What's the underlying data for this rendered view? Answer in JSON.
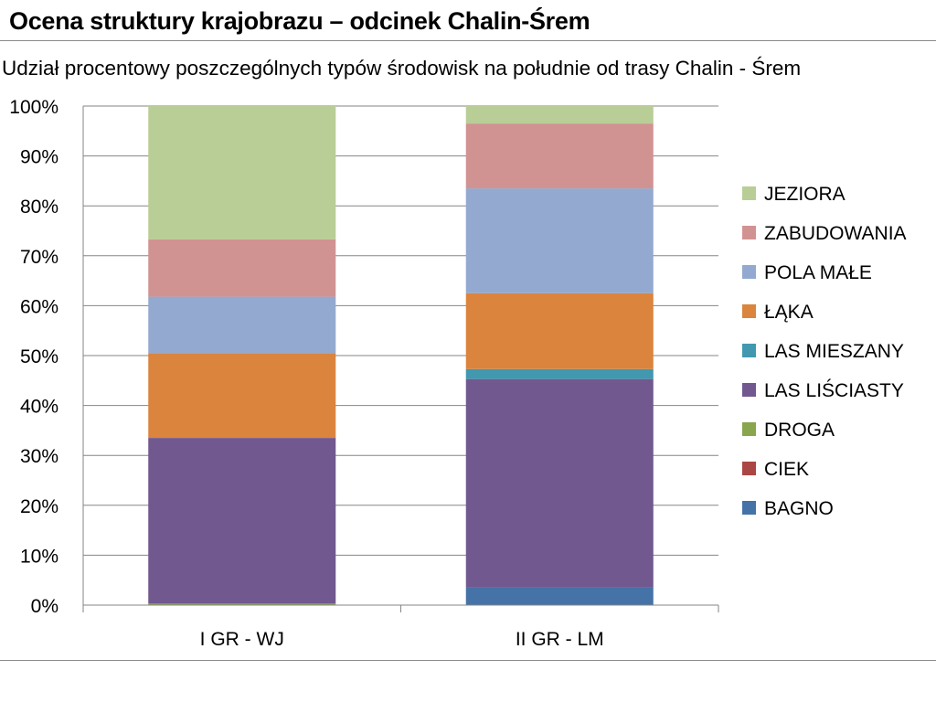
{
  "slide": {
    "title": "Ocena struktury krajobrazu – odcinek Chalin-Śrem"
  },
  "chart_data": {
    "type": "bar",
    "stacked": true,
    "percent_stacked": true,
    "title": "Udział procentowy  poszczególnych typów środowisk na  południe od trasy  Chalin - Śrem",
    "xlabel": "",
    "ylabel": "",
    "ylim": [
      0,
      100
    ],
    "yticks": [
      "0%",
      "10%",
      "20%",
      "30%",
      "40%",
      "50%",
      "60%",
      "70%",
      "80%",
      "90%",
      "100%"
    ],
    "categories": [
      "I GR - WJ",
      "II GR - LM"
    ],
    "grid": true,
    "legend_position": "right",
    "series": [
      {
        "name": "BAGNO",
        "color": "#4572a7",
        "values": [
          0,
          3.5
        ]
      },
      {
        "name": "CIEK",
        "color": "#aa4643",
        "values": [
          0,
          0
        ]
      },
      {
        "name": "DROGA",
        "color": "#89a54e",
        "values": [
          0.3,
          0
        ]
      },
      {
        "name": "LAS LIŚCIASTY",
        "color": "#71588f",
        "values": [
          33.2,
          41.8
        ]
      },
      {
        "name": "LAS MIESZANY",
        "color": "#4198af",
        "values": [
          0,
          2
        ]
      },
      {
        "name": "ŁĄKA",
        "color": "#db843d",
        "values": [
          17,
          15.2
        ]
      },
      {
        "name": "POLA MAŁE",
        "color": "#93a9cf",
        "values": [
          11.3,
          21
        ]
      },
      {
        "name": "ZABUDOWANIA",
        "color": "#d19392",
        "values": [
          11.5,
          13
        ]
      },
      {
        "name": "JEZIORA",
        "color": "#b9cd96",
        "values": [
          26.7,
          3.5
        ]
      }
    ]
  }
}
